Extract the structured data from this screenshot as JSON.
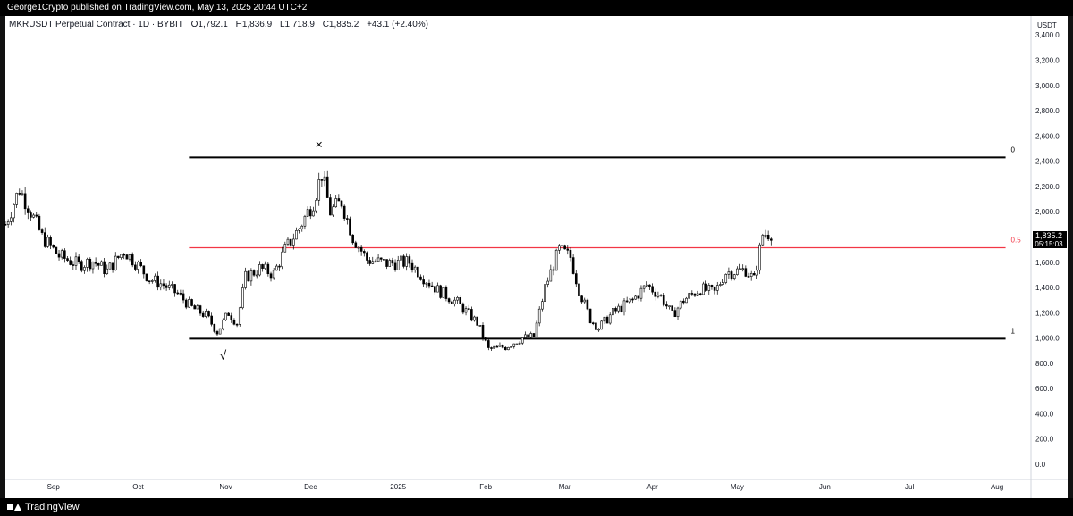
{
  "header": {
    "published": "George1Crypto published on TradingView.com, May 13, 2025 20:44 UTC+2"
  },
  "legend": {
    "symbol": "MKRUSDT Perpetual Contract · 1D · BYBIT",
    "open": "O1,792.1",
    "high": "H1,836.9",
    "low": "L1,718.9",
    "close": "C1,835.2",
    "change": "+43.1 (+2.40%)"
  },
  "price_box": {
    "price": "1,835.2",
    "countdown": "05:15:03"
  },
  "footer": {
    "brand": "TradingView"
  },
  "chart_data": {
    "type": "candlestick",
    "yunit": "USDT",
    "ylim": [
      -120,
      3550
    ],
    "y_ticks": [
      0,
      200,
      400,
      600,
      800,
      1000,
      1200,
      1400,
      1600,
      1800,
      2000,
      2200,
      2400,
      2600,
      2800,
      3000,
      3200,
      3400
    ],
    "y_tick_labels": [
      "0.0",
      "200.0",
      "400.0",
      "600.0",
      "800.0",
      "1,000.0",
      "1,200.0",
      "1,400.0",
      "1,600.0",
      "1,800.0",
      "2,000.0",
      "2,200.0",
      "2,400.0",
      "2,600.0",
      "2,800.0",
      "3,000.0",
      "3,200.0",
      "3,400.0"
    ],
    "x_start": "2024-08-15",
    "x_end": "2025-08-13",
    "x_ticks": [
      {
        "label": "Sep",
        "date": "2024-09-01"
      },
      {
        "label": "Oct",
        "date": "2024-10-01"
      },
      {
        "label": "Nov",
        "date": "2024-11-01"
      },
      {
        "label": "Dec",
        "date": "2024-12-01"
      },
      {
        "label": "2025",
        "date": "2025-01-01"
      },
      {
        "label": "Feb",
        "date": "2025-02-01"
      },
      {
        "label": "Mar",
        "date": "2025-03-01"
      },
      {
        "label": "Apr",
        "date": "2025-04-01"
      },
      {
        "label": "May",
        "date": "2025-05-01"
      },
      {
        "label": "Jun",
        "date": "2025-06-01"
      },
      {
        "label": "Jul",
        "date": "2025-07-01"
      },
      {
        "label": "Aug",
        "date": "2025-08-01"
      }
    ],
    "fib_levels": [
      {
        "label": "0",
        "price": 2430,
        "color": "#000000"
      },
      {
        "label": "0.5",
        "price": 1715,
        "color": "#f23645"
      },
      {
        "label": "1",
        "price": 995,
        "color": "#000000"
      }
    ],
    "fib_start": "2024-10-19",
    "fib_end": "2025-08-04",
    "annotations": [
      {
        "symbol": "×",
        "date": "2024-12-04",
        "price": 2500
      },
      {
        "symbol": "√",
        "date": "2024-10-31",
        "price": 830
      }
    ],
    "close_path": [
      [
        "2024-08-15",
        1900
      ],
      [
        "2024-08-20",
        2180
      ],
      [
        "2024-08-24",
        2000
      ],
      [
        "2024-08-28",
        1800
      ],
      [
        "2024-09-03",
        1650
      ],
      [
        "2024-09-10",
        1580
      ],
      [
        "2024-09-15",
        1610
      ],
      [
        "2024-09-20",
        1530
      ],
      [
        "2024-09-26",
        1690
      ],
      [
        "2024-09-30",
        1600
      ],
      [
        "2024-10-05",
        1470
      ],
      [
        "2024-10-10",
        1420
      ],
      [
        "2024-10-15",
        1350
      ],
      [
        "2024-10-20",
        1240
      ],
      [
        "2024-10-25",
        1180
      ],
      [
        "2024-10-29",
        1050
      ],
      [
        "2024-11-02",
        1200
      ],
      [
        "2024-11-05",
        1120
      ],
      [
        "2024-11-08",
        1480
      ],
      [
        "2024-11-13",
        1550
      ],
      [
        "2024-11-18",
        1510
      ],
      [
        "2024-11-22",
        1700
      ],
      [
        "2024-11-27",
        1870
      ],
      [
        "2024-12-02",
        2080
      ],
      [
        "2024-12-05",
        2300
      ],
      [
        "2024-12-08",
        2000
      ],
      [
        "2024-12-12",
        2080
      ],
      [
        "2024-12-16",
        1800
      ],
      [
        "2024-12-21",
        1620
      ],
      [
        "2024-12-28",
        1590
      ],
      [
        "2025-01-05",
        1600
      ],
      [
        "2025-01-10",
        1480
      ],
      [
        "2025-01-15",
        1380
      ],
      [
        "2025-01-22",
        1280
      ],
      [
        "2025-01-29",
        1120
      ],
      [
        "2025-02-02",
        910
      ],
      [
        "2025-02-08",
        930
      ],
      [
        "2025-02-14",
        1000
      ],
      [
        "2025-02-18",
        1010
      ],
      [
        "2025-02-22",
        1400
      ],
      [
        "2025-02-27",
        1700
      ],
      [
        "2025-03-03",
        1640
      ],
      [
        "2025-03-06",
        1380
      ],
      [
        "2025-03-10",
        1150
      ],
      [
        "2025-03-13",
        1080
      ],
      [
        "2025-03-18",
        1200
      ],
      [
        "2025-03-25",
        1300
      ],
      [
        "2025-03-30",
        1420
      ],
      [
        "2025-04-04",
        1330
      ],
      [
        "2025-04-08",
        1180
      ],
      [
        "2025-04-12",
        1300
      ],
      [
        "2025-04-18",
        1390
      ],
      [
        "2025-04-23",
        1360
      ],
      [
        "2025-04-27",
        1520
      ],
      [
        "2025-05-04",
        1540
      ],
      [
        "2025-05-07",
        1460
      ],
      [
        "2025-05-10",
        1820
      ],
      [
        "2025-05-13",
        1835
      ]
    ]
  }
}
